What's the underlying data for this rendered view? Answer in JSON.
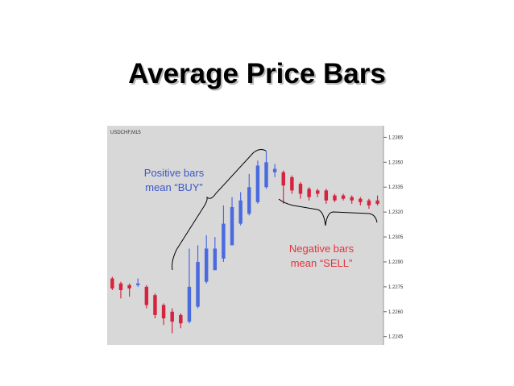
{
  "slide": {
    "title": "Average Price Bars"
  },
  "colors": {
    "chart_bg": "#d8d8d8",
    "axis_bg": "#ffffff",
    "positive_bar": "#4a6ae0",
    "negative_bar": "#d6243f",
    "bracket": "#000000",
    "positive_text": "#3b57c9",
    "negative_text": "#e3343f"
  },
  "annotations": {
    "positive_line1": "Positive bars",
    "positive_line2": "mean “BUY”",
    "negative_line1": "Negative bars",
    "negative_line2": "mean “SELL”"
  },
  "chart_data": {
    "type": "candlestick",
    "symbol_label": "USDCHF,M15",
    "ylim": [
      1.224,
      1.2372
    ],
    "yticks": [
      1.2365,
      1.235,
      1.2335,
      1.232,
      1.2305,
      1.229,
      1.2275,
      1.226,
      1.2245
    ],
    "ytick_labels": [
      "1.2365",
      "1.2350",
      "1.2335",
      "1.2320",
      "1.2305",
      "1.2290",
      "1.2275",
      "1.2260",
      "1.2245"
    ],
    "grid": false,
    "bars": [
      {
        "dir": "down",
        "open": 1.228,
        "close": 1.2274,
        "high": 1.2281,
        "low": 1.2273
      },
      {
        "dir": "down",
        "open": 1.2277,
        "close": 1.2273,
        "high": 1.2278,
        "low": 1.2268
      },
      {
        "dir": "down",
        "open": 1.2276,
        "close": 1.2274,
        "high": 1.2277,
        "low": 1.2269
      },
      {
        "dir": "up",
        "open": 1.2276,
        "close": 1.2277,
        "high": 1.228,
        "low": 1.2275
      },
      {
        "dir": "down",
        "open": 1.2275,
        "close": 1.2264,
        "high": 1.2276,
        "low": 1.2262
      },
      {
        "dir": "down",
        "open": 1.227,
        "close": 1.2258,
        "high": 1.2271,
        "low": 1.2256
      },
      {
        "dir": "down",
        "open": 1.2264,
        "close": 1.2256,
        "high": 1.2265,
        "low": 1.2252
      },
      {
        "dir": "down",
        "open": 1.226,
        "close": 1.2254,
        "high": 1.2262,
        "low": 1.2247
      },
      {
        "dir": "down",
        "open": 1.2258,
        "close": 1.2253,
        "high": 1.2259,
        "low": 1.225
      },
      {
        "dir": "up",
        "open": 1.2254,
        "close": 1.2275,
        "high": 1.2298,
        "low": 1.2253
      },
      {
        "dir": "up",
        "open": 1.2263,
        "close": 1.229,
        "high": 1.23,
        "low": 1.2262
      },
      {
        "dir": "up",
        "open": 1.2278,
        "close": 1.2298,
        "high": 1.2306,
        "low": 1.2277
      },
      {
        "dir": "up",
        "open": 1.2285,
        "close": 1.2298,
        "high": 1.2305,
        "low": 1.2285
      },
      {
        "dir": "up",
        "open": 1.2292,
        "close": 1.2313,
        "high": 1.2324,
        "low": 1.229
      },
      {
        "dir": "up",
        "open": 1.23,
        "close": 1.2323,
        "high": 1.2329,
        "low": 1.23
      },
      {
        "dir": "up",
        "open": 1.2313,
        "close": 1.2327,
        "high": 1.2332,
        "low": 1.2312
      },
      {
        "dir": "up",
        "open": 1.2319,
        "close": 1.2335,
        "high": 1.2343,
        "low": 1.2318
      },
      {
        "dir": "up",
        "open": 1.2326,
        "close": 1.2348,
        "high": 1.2351,
        "low": 1.2325
      },
      {
        "dir": "up",
        "open": 1.2335,
        "close": 1.235,
        "high": 1.2357,
        "low": 1.2334
      },
      {
        "dir": "up",
        "open": 1.2344,
        "close": 1.2346,
        "high": 1.2349,
        "low": 1.2341
      },
      {
        "dir": "down",
        "open": 1.2344,
        "close": 1.2336,
        "high": 1.2345,
        "low": 1.2325
      },
      {
        "dir": "down",
        "open": 1.2341,
        "close": 1.2333,
        "high": 1.2342,
        "low": 1.2331
      },
      {
        "dir": "down",
        "open": 1.2337,
        "close": 1.2331,
        "high": 1.2338,
        "low": 1.2328
      },
      {
        "dir": "down",
        "open": 1.2334,
        "close": 1.2329,
        "high": 1.2335,
        "low": 1.2327
      },
      {
        "dir": "down",
        "open": 1.2333,
        "close": 1.2331,
        "high": 1.2334,
        "low": 1.2329
      },
      {
        "dir": "down",
        "open": 1.2333,
        "close": 1.2327,
        "high": 1.2334,
        "low": 1.2325
      },
      {
        "dir": "down",
        "open": 1.233,
        "close": 1.2327,
        "high": 1.2331,
        "low": 1.2326
      },
      {
        "dir": "down",
        "open": 1.233,
        "close": 1.2328,
        "high": 1.2331,
        "low": 1.2327
      },
      {
        "dir": "down",
        "open": 1.2329,
        "close": 1.2327,
        "high": 1.233,
        "low": 1.2325
      },
      {
        "dir": "down",
        "open": 1.2328,
        "close": 1.2326,
        "high": 1.2329,
        "low": 1.2324
      },
      {
        "dir": "down",
        "open": 1.2327,
        "close": 1.2324,
        "high": 1.2328,
        "low": 1.2322
      },
      {
        "dir": "down",
        "open": 1.2327,
        "close": 1.2325,
        "high": 1.233,
        "low": 1.2324
      }
    ]
  }
}
